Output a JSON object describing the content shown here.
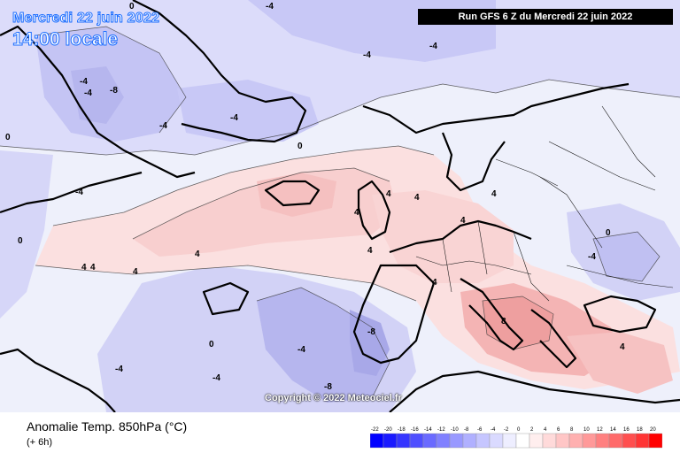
{
  "header": {
    "date": "Mercredi 22 juin 2022",
    "time": "14:00 locale",
    "run": "Run GFS 6 Z du Mercredi 22 juin 2022"
  },
  "copyright": "Copyright © 2022 Meteociel.fr",
  "legend": {
    "title": "Anomalie Temp. 850hPa (°C)",
    "subtitle": "(+ 6h)",
    "ticks": [
      "-22",
      "-20",
      "-18",
      "-16",
      "-14",
      "-12",
      "-10",
      "-8",
      "-6",
      "-4",
      "-2",
      "0",
      "2",
      "4",
      "6",
      "8",
      "10",
      "12",
      "14",
      "16",
      "18",
      "20"
    ],
    "colors": [
      "#0000ff",
      "#1a1aff",
      "#3535ff",
      "#4f4fff",
      "#6a6aff",
      "#8080ff",
      "#9999ff",
      "#b0b0ff",
      "#c6c6ff",
      "#dadaff",
      "#eeeeff",
      "#ffffff",
      "#ffeeee",
      "#ffdada",
      "#ffc6c6",
      "#ffb0b0",
      "#ff9999",
      "#ff8080",
      "#ff6a6a",
      "#ff4f4f",
      "#ff3535",
      "#ff0000"
    ]
  },
  "contour_labels": [
    "-4",
    "-4",
    "-4",
    "-4",
    "-4",
    "-4",
    "-4",
    "-4",
    "-8",
    "-4",
    "-4",
    "0",
    "0",
    "0",
    "0",
    "0",
    "0",
    "4",
    "4",
    "4",
    "4",
    "4",
    "4",
    "4",
    "4",
    "4",
    "4",
    "4",
    "4",
    "-8",
    "-8",
    "-4",
    "-4",
    "8"
  ],
  "map_colors": {
    "cold_light": "#dcdcfa",
    "cold_mid": "#c4c4f4",
    "cold_dark": "#b0b0ec",
    "warm_light": "#fce4e4",
    "warm_mid": "#f8cccc",
    "warm_dark": "#f2b0b0",
    "neutral": "#f4f4fc"
  }
}
